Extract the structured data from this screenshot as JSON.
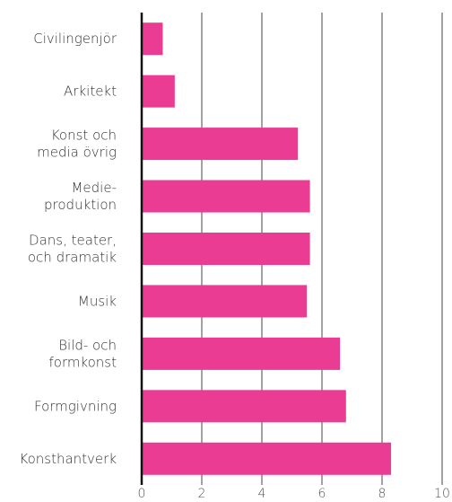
{
  "chart_data": {
    "type": "barh",
    "categories": [
      "Civilingenjör",
      "Arkitekt",
      "Konst och\nmedia övrig",
      "Medie-\nproduktion",
      "Dans, teater,\noch dramatik",
      "Musik",
      "Bild- och\nformkonst",
      "Formgivning",
      "Konsthantverk"
    ],
    "values": [
      0.7,
      1.1,
      5.2,
      5.6,
      5.6,
      5.5,
      6.6,
      6.8,
      8.3
    ],
    "color": "#ea3c93",
    "xlim": [
      0,
      10
    ],
    "xticks": [
      0,
      2,
      4,
      6,
      8,
      10
    ],
    "grid": true
  }
}
